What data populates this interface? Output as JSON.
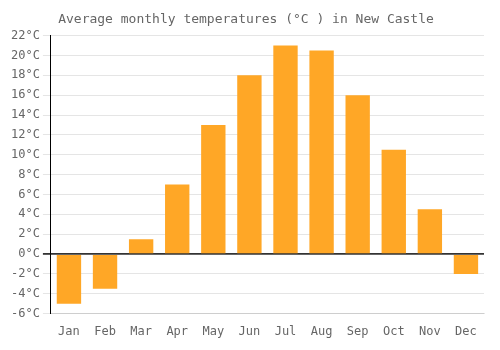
{
  "chart_data": {
    "type": "bar",
    "title": "Average monthly temperatures (°C ) in New Castle",
    "categories": [
      "Jan",
      "Feb",
      "Mar",
      "Apr",
      "May",
      "Jun",
      "Jul",
      "Aug",
      "Sep",
      "Oct",
      "Nov",
      "Dec"
    ],
    "values": [
      -5,
      -3.5,
      1.5,
      7,
      13,
      18,
      21,
      20.5,
      16,
      10.5,
      4.5,
      -2
    ],
    "color": "#FFA726",
    "ylim": [
      -6,
      22
    ],
    "yticks": [
      {
        "value": -6,
        "label": "-6°C"
      },
      {
        "value": -4,
        "label": "-4°C"
      },
      {
        "value": -2,
        "label": "-2°C"
      },
      {
        "value": 0,
        "label": "0°C"
      },
      {
        "value": 2,
        "label": "2°C"
      },
      {
        "value": 4,
        "label": "4°C"
      },
      {
        "value": 6,
        "label": "6°C"
      },
      {
        "value": 8,
        "label": "8°C"
      },
      {
        "value": 10,
        "label": "10°C"
      },
      {
        "value": 12,
        "label": "12°C"
      },
      {
        "value": 14,
        "label": "14°C"
      },
      {
        "value": 16,
        "label": "16°C"
      },
      {
        "value": 18,
        "label": "18°C"
      },
      {
        "value": 20,
        "label": "20°C"
      },
      {
        "value": 22,
        "label": "22°C"
      }
    ],
    "grid": true
  }
}
